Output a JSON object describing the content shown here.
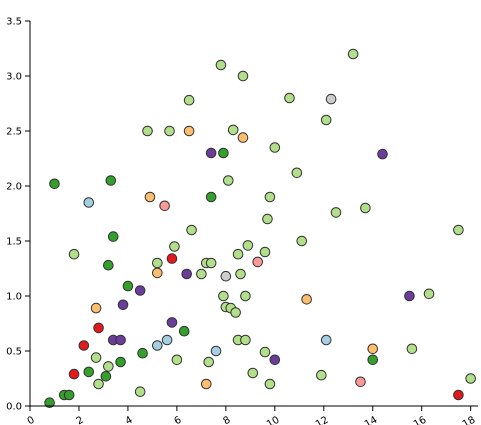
{
  "chart_data": {
    "type": "scatter",
    "title": "",
    "xlabel": "",
    "ylabel": "",
    "xlim": [
      0,
      18.3
    ],
    "ylim": [
      0,
      3.5
    ],
    "x_ticks": [
      0,
      2,
      4,
      6,
      8,
      10,
      12,
      14,
      16,
      18
    ],
    "y_ticks": [
      0.0,
      0.5,
      1.0,
      1.5,
      2.0,
      2.5,
      3.0,
      3.5
    ],
    "x_tick_labels": [
      "0",
      "2",
      "4",
      "6",
      "8",
      "10",
      "12",
      "14",
      "16",
      "18"
    ],
    "y_tick_labels": [
      "0.0",
      "0.5",
      "1.0",
      "1.5",
      "2.0",
      "2.5",
      "3.0",
      "3.5"
    ],
    "grid": false,
    "colors": {
      "light_green": "#b2df8a",
      "dark_green": "#33a02c",
      "purple": "#6a3d9a",
      "orange": "#fdbf6f",
      "red": "#e31a1c",
      "light_blue": "#a6cee3",
      "pink": "#fb9a99",
      "grey": "#cccccc"
    },
    "series": [
      {
        "color": "#b2df8a",
        "points": [
          [
            1.8,
            1.38
          ],
          [
            2.7,
            0.44
          ],
          [
            2.8,
            0.2
          ],
          [
            3.2,
            0.36
          ],
          [
            4.5,
            0.13
          ],
          [
            4.8,
            2.5
          ],
          [
            5.2,
            1.3
          ],
          [
            5.7,
            2.5
          ],
          [
            5.9,
            1.45
          ],
          [
            6.0,
            0.42
          ],
          [
            6.5,
            2.78
          ],
          [
            6.6,
            1.6
          ],
          [
            7.0,
            1.2
          ],
          [
            7.2,
            1.3
          ],
          [
            7.3,
            0.4
          ],
          [
            7.4,
            1.3
          ],
          [
            7.8,
            3.1
          ],
          [
            7.9,
            1.0
          ],
          [
            8.0,
            0.9
          ],
          [
            8.1,
            2.05
          ],
          [
            8.2,
            0.89
          ],
          [
            8.3,
            2.51
          ],
          [
            8.4,
            0.85
          ],
          [
            8.5,
            1.38
          ],
          [
            8.5,
            0.6
          ],
          [
            8.6,
            1.2
          ],
          [
            8.7,
            3.0
          ],
          [
            8.8,
            1.0
          ],
          [
            8.8,
            0.6
          ],
          [
            8.9,
            1.46
          ],
          [
            9.1,
            0.3
          ],
          [
            9.6,
            0.49
          ],
          [
            9.6,
            1.4
          ],
          [
            9.7,
            1.7
          ],
          [
            9.8,
            1.9
          ],
          [
            9.8,
            0.2
          ],
          [
            10.0,
            2.35
          ],
          [
            10.6,
            2.8
          ],
          [
            10.9,
            2.12
          ],
          [
            11.1,
            1.5
          ],
          [
            11.9,
            0.28
          ],
          [
            12.1,
            2.6
          ],
          [
            12.5,
            1.76
          ],
          [
            13.2,
            3.2
          ],
          [
            13.7,
            1.8
          ],
          [
            15.6,
            0.52
          ],
          [
            16.3,
            1.02
          ],
          [
            17.5,
            1.6
          ],
          [
            18.0,
            0.25
          ]
        ]
      },
      {
        "color": "#33a02c",
        "points": [
          [
            0.8,
            0.03
          ],
          [
            1.0,
            2.02
          ],
          [
            1.4,
            0.1
          ],
          [
            1.6,
            0.1
          ],
          [
            2.4,
            0.31
          ],
          [
            3.1,
            0.27
          ],
          [
            3.2,
            1.28
          ],
          [
            3.3,
            2.05
          ],
          [
            3.4,
            1.54
          ],
          [
            3.7,
            0.4
          ],
          [
            4.0,
            1.09
          ],
          [
            4.6,
            0.48
          ],
          [
            6.3,
            0.68
          ],
          [
            7.4,
            1.9
          ],
          [
            7.9,
            2.3
          ],
          [
            14.0,
            0.42
          ]
        ]
      },
      {
        "color": "#6a3d9a",
        "points": [
          [
            3.4,
            0.6
          ],
          [
            3.7,
            0.6
          ],
          [
            3.8,
            0.92
          ],
          [
            4.5,
            1.05
          ],
          [
            5.8,
            0.76
          ],
          [
            6.4,
            1.2
          ],
          [
            7.4,
            2.3
          ],
          [
            10.0,
            0.42
          ],
          [
            14.4,
            2.29
          ],
          [
            15.5,
            1.0
          ]
        ]
      },
      {
        "color": "#fdbf6f",
        "points": [
          [
            2.7,
            0.89
          ],
          [
            4.9,
            1.9
          ],
          [
            5.2,
            1.21
          ],
          [
            6.5,
            2.5
          ],
          [
            7.2,
            0.2
          ],
          [
            8.7,
            2.44
          ],
          [
            11.3,
            0.97
          ],
          [
            14.0,
            0.52
          ]
        ]
      },
      {
        "color": "#e31a1c",
        "points": [
          [
            1.8,
            0.29
          ],
          [
            2.2,
            0.55
          ],
          [
            2.8,
            0.71
          ],
          [
            5.8,
            1.34
          ],
          [
            17.5,
            0.1
          ]
        ]
      },
      {
        "color": "#a6cee3",
        "points": [
          [
            2.4,
            1.85
          ],
          [
            5.2,
            0.55
          ],
          [
            5.6,
            0.6
          ],
          [
            7.6,
            0.5
          ],
          [
            12.1,
            0.6
          ]
        ]
      },
      {
        "color": "#fb9a99",
        "points": [
          [
            5.5,
            1.82
          ],
          [
            9.3,
            1.31
          ],
          [
            13.5,
            0.22
          ]
        ]
      },
      {
        "color": "#cccccc",
        "points": [
          [
            8.0,
            1.18
          ],
          [
            12.3,
            2.79
          ]
        ]
      }
    ]
  }
}
